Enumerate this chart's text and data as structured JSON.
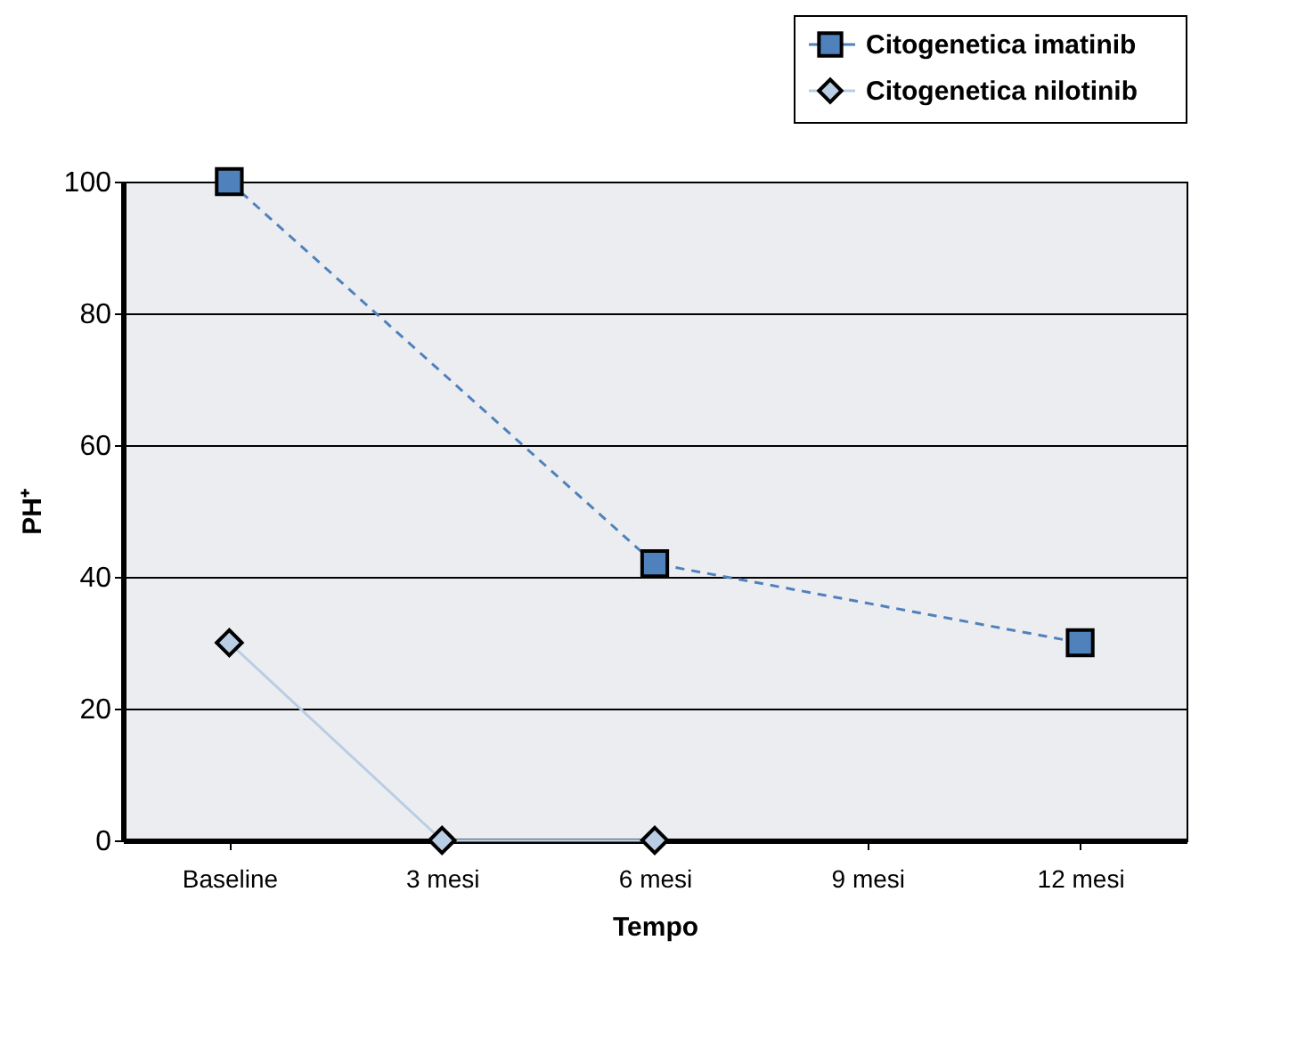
{
  "chart_data": {
    "type": "line",
    "xlabel": "Tempo",
    "ylabel": "PH⁺",
    "categories": [
      "Baseline",
      "3 mesi",
      "6 mesi",
      "9 mesi",
      "12 mesi"
    ],
    "series": [
      {
        "name": "Citogenetica imatinib",
        "color": "#4f81bd",
        "marker": "square",
        "line_style": "dashed",
        "values": [
          100,
          null,
          42,
          null,
          30
        ]
      },
      {
        "name": "Citogenetica nilotinib",
        "color": "#b9cde5",
        "marker": "diamond",
        "line_style": "solid",
        "values": [
          30,
          0,
          0,
          null,
          null
        ]
      }
    ],
    "ylim": [
      0,
      100
    ],
    "yticks": [
      0,
      20,
      40,
      60,
      80,
      100
    ],
    "grid": "y",
    "legend": "top right"
  }
}
